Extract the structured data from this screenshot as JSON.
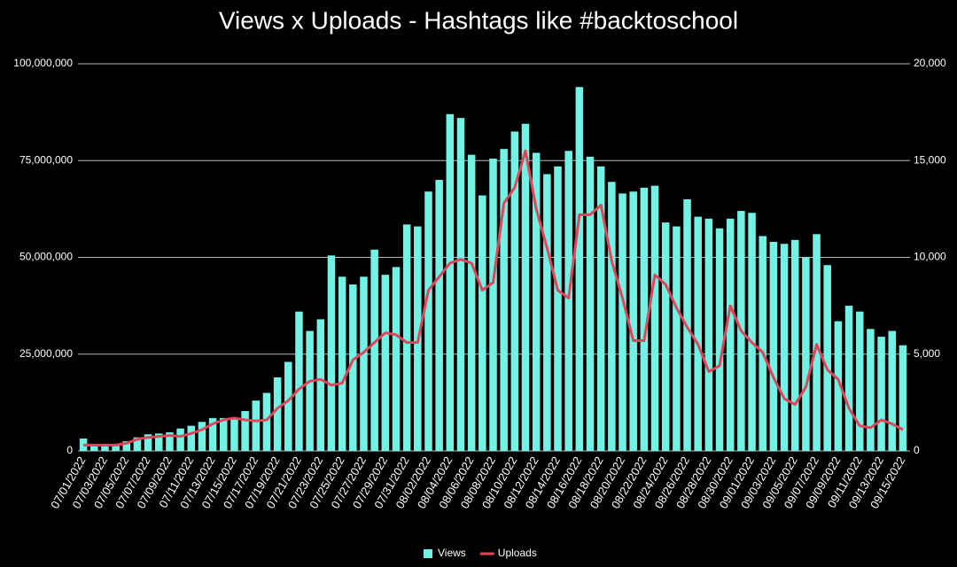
{
  "chart_data": {
    "type": "bar-line",
    "title": "Views x Uploads - Hashtags like #backtoschool",
    "categories": [
      "07/01/2022",
      null,
      "07/03/2022",
      null,
      "07/05/2022",
      null,
      "07/07/2022",
      null,
      "07/09/2022",
      null,
      "07/11/2022",
      null,
      "07/13/2022",
      null,
      "07/15/2022",
      null,
      "07/17/2022",
      null,
      "07/19/2022",
      null,
      "07/21/2022",
      null,
      "07/23/2022",
      null,
      "07/25/2022",
      null,
      "07/27/2022",
      null,
      "07/29/2022",
      null,
      "07/31/2022",
      null,
      "08/02/2022",
      null,
      "08/04/2022",
      null,
      "08/06/2022",
      null,
      "08/08/2022",
      null,
      "08/10/2022",
      null,
      "08/12/2022",
      null,
      "08/14/2022",
      null,
      "08/16/2022",
      null,
      "08/18/2022",
      null,
      "08/20/2022",
      null,
      "08/22/2022",
      null,
      "08/24/2022",
      null,
      "08/26/2022",
      null,
      "08/28/2022",
      null,
      "08/30/2022",
      null,
      "09/01/2022",
      null,
      "09/03/2022",
      null,
      "09/05/2022",
      null,
      "09/07/2022",
      null,
      "09/09/2022",
      null,
      "09/11/2022",
      null,
      "09/13/2022",
      null,
      "09/15/2022"
    ],
    "series": [
      {
        "name": "Views",
        "color": "#72f1e5",
        "values": [
          3200000,
          1800000,
          1500000,
          1800000,
          2500000,
          3500000,
          4300000,
          4500000,
          4800000,
          5800000,
          6500000,
          7500000,
          8500000,
          8500000,
          8300000,
          10300000,
          13000000,
          15000000,
          19000000,
          23000000,
          36000000,
          31000000,
          34000000,
          50500000,
          45000000,
          43000000,
          45000000,
          52000000,
          45500000,
          47500000,
          58500000,
          58000000,
          67000000,
          70000000,
          87000000,
          86000000,
          76500000,
          66000000,
          75500000,
          78000000,
          82500000,
          84500000,
          77000000,
          71500000,
          73500000,
          77500000,
          94000000,
          76000000,
          73500000,
          69500000,
          66500000,
          67000000,
          68000000,
          68500000,
          59000000,
          58000000,
          65000000,
          60500000,
          60000000,
          57500000,
          60000000,
          62000000,
          61500000,
          55500000,
          54000000,
          53500000,
          54500000,
          50000000,
          56000000,
          48000000,
          33500000,
          37500000,
          36000000,
          31500000,
          29500000,
          31000000,
          27300000
        ]
      },
      {
        "name": "Uploads",
        "color": "#e0455a",
        "axis": "y2",
        "values": [
          300,
          300,
          300,
          300,
          400,
          600,
          700,
          750,
          800,
          750,
          900,
          1100,
          1400,
          1600,
          1700,
          1600,
          1550,
          1600,
          2200,
          2600,
          3200,
          3600,
          3700,
          3400,
          3500,
          4700,
          5100,
          5600,
          6100,
          6000,
          5600,
          5600,
          8300,
          9000,
          9700,
          9900,
          9700,
          8300,
          8700,
          12800,
          13600,
          15500,
          12500,
          10500,
          8300,
          7900,
          12200,
          12200,
          12700,
          9800,
          7900,
          5700,
          5700,
          9100,
          8600,
          7400,
          6400,
          5500,
          4100,
          4400,
          7500,
          6200,
          5600,
          5100,
          3800,
          2700,
          2400,
          3300,
          5500,
          4200,
          3700,
          2200,
          1300,
          1200,
          1600,
          1400,
          1100
        ]
      }
    ],
    "ylim": [
      0,
      100000000
    ],
    "yticks": [
      0,
      {
        "value": 25000000,
        "label": "25,000,000"
      },
      {
        "value": 50000000,
        "label": "50,000,000"
      },
      {
        "value": 75000000,
        "label": "75,000,000"
      },
      {
        "value": 100000000,
        "label": "100,000,000"
      }
    ],
    "y2lim": [
      0,
      20000
    ],
    "y2ticks": [
      0,
      {
        "value": 5000,
        "label": "5,000"
      },
      {
        "value": 10000,
        "label": "10,000"
      },
      {
        "value": 15000,
        "label": "15,000"
      },
      {
        "value": 20000,
        "label": "20,000"
      }
    ],
    "grid": true,
    "legend": "bottom"
  }
}
